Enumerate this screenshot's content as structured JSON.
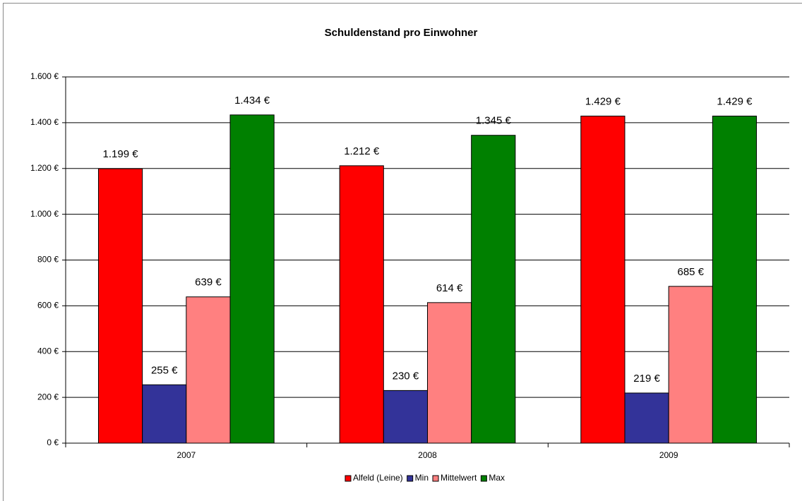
{
  "chart_data": {
    "type": "bar",
    "title": "Schuldenstand pro Einwohner",
    "categories": [
      "2007",
      "2008",
      "2009"
    ],
    "series": [
      {
        "name": "Alfeld (Leine)",
        "color": "#ff0000",
        "values": [
          1199,
          1212,
          1429
        ],
        "value_labels": [
          "1.199 €",
          "1.212 €",
          "1.429 €"
        ]
      },
      {
        "name": "Min",
        "color": "#333399",
        "values": [
          255,
          230,
          219
        ],
        "value_labels": [
          "255 €",
          "230 €",
          "219 €"
        ]
      },
      {
        "name": "Mittelwert",
        "color": "#ff8080",
        "values": [
          639,
          614,
          685
        ],
        "value_labels": [
          "639 €",
          "614 €",
          "685 €"
        ]
      },
      {
        "name": "Max",
        "color": "#008000",
        "values": [
          1434,
          1345,
          1429
        ],
        "value_labels": [
          "1.434 €",
          "1.345 €",
          "1.429 €"
        ]
      }
    ],
    "ylim": [
      0,
      1600
    ],
    "yticks": [
      {
        "value": 0,
        "label": "0 €"
      },
      {
        "value": 200,
        "label": "200 €"
      },
      {
        "value": 400,
        "label": "400 €"
      },
      {
        "value": 600,
        "label": "600 €"
      },
      {
        "value": 800,
        "label": "800 €"
      },
      {
        "value": 1000,
        "label": "1.000 €"
      },
      {
        "value": 1200,
        "label": "1.200 €"
      },
      {
        "value": 1400,
        "label": "1.400 €"
      },
      {
        "value": 1600,
        "label": "1.600 €"
      }
    ],
    "grid": true,
    "legend": "bottom"
  }
}
